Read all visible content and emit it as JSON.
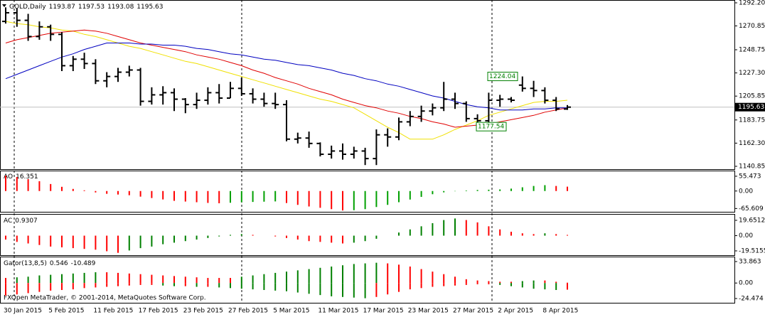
{
  "chart_data": [
    {
      "type": "ohlc",
      "title": "GOLD,Daily",
      "categories": [
        "30 Jan 2015",
        null,
        null,
        null,
        "5 Feb 2015",
        null,
        null,
        null,
        "11 Feb 2015",
        null,
        null,
        null,
        "17 Feb 2015",
        null,
        null,
        null,
        "23 Feb 2015",
        null,
        null,
        null,
        "27 Feb 2015",
        null,
        null,
        null,
        "5 Mar 2015",
        null,
        null,
        null,
        "11 Mar 2015",
        null,
        null,
        null,
        "17 Mar 2015",
        null,
        null,
        null,
        "23 Mar 2015",
        null,
        null,
        null,
        "27 Mar 2015",
        null,
        null,
        null,
        "2 Apr 2015",
        null,
        null,
        null,
        "8 Apr 2015",
        null,
        null
      ],
      "open": [
        1275,
        1283,
        1276,
        1261,
        1270,
        1263,
        1234,
        1240,
        1236,
        1220,
        1224,
        1228,
        1230,
        1201,
        1207,
        1209,
        1203,
        1198,
        1202,
        1209,
        1204,
        1213,
        1208,
        1203,
        1199,
        1198,
        1166,
        1167,
        1162,
        1152,
        1155,
        1152,
        1155,
        1148,
        1170,
        1168,
        1182,
        1187,
        1192,
        1195,
        1203,
        1199,
        1185,
        1183,
        1202,
        1203,
        1216,
        1213,
        1211,
        1202,
        1193.87
      ],
      "high": [
        1288,
        1287,
        1282,
        1275,
        1272,
        1265,
        1243,
        1246,
        1240,
        1228,
        1232,
        1234,
        1232,
        1214,
        1215,
        1213,
        1204,
        1209,
        1214,
        1217,
        1219,
        1223,
        1213,
        1209,
        1209,
        1202,
        1172,
        1173,
        1163,
        1160,
        1162,
        1159,
        1158,
        1175,
        1176,
        1186,
        1192,
        1197,
        1199,
        1219,
        1209,
        1201,
        1189,
        1209,
        1207,
        1205,
        1224.04,
        1220,
        1214,
        1205,
        1197.53
      ],
      "low": [
        1273,
        1270,
        1257,
        1258,
        1257,
        1229,
        1229,
        1231,
        1217,
        1214,
        1219,
        1224,
        1197,
        1198,
        1198,
        1192,
        1190,
        1194,
        1198,
        1199,
        1204,
        1206,
        1199,
        1196,
        1194,
        1164,
        1162,
        1158,
        1150,
        1148,
        1147,
        1148,
        1142,
        1142,
        1159,
        1165,
        1178,
        1182,
        1188,
        1192,
        1194,
        1182,
        1177.54,
        1178,
        1196,
        1200,
        1210,
        1205,
        1199,
        1192,
        1193.08
      ],
      "close": [
        1283,
        1276,
        1261,
        1270,
        1263,
        1234,
        1240,
        1236,
        1220,
        1224,
        1228,
        1230,
        1201,
        1207,
        1209,
        1203,
        1198,
        1202,
        1209,
        1204,
        1213,
        1208,
        1203,
        1199,
        1198,
        1166,
        1167,
        1162,
        1152,
        1155,
        1152,
        1155,
        1148,
        1170,
        1168,
        1182,
        1187,
        1192,
        1195,
        1203,
        1199,
        1185,
        1183,
        1202,
        1203,
        1202,
        1213,
        1211,
        1202,
        1194,
        1195.63
      ],
      "bar_color": "#000000",
      "series": [
        {
          "color": "#f0e000",
          "values": [
            1275,
            1273,
            1272,
            1270,
            1269,
            1267,
            1266,
            1263,
            1261,
            1258,
            1255,
            1252,
            1250,
            1247,
            1244,
            1241,
            1238,
            1236,
            1233,
            1230,
            1227,
            1224,
            1221,
            1218,
            1215,
            1212,
            1209,
            1206,
            1203,
            1201,
            1198,
            1195,
            1189,
            1183,
            1177,
            1172,
            1166,
            1166,
            1166,
            1170,
            1175,
            1179,
            1183,
            1188,
            1191,
            1194,
            1197,
            1200,
            1201,
            1201,
            1202
          ]
        },
        {
          "color": "#e00000",
          "values": [
            1255,
            1258,
            1260,
            1262,
            1264,
            1265,
            1266,
            1267,
            1266,
            1264,
            1261,
            1258,
            1255,
            1253,
            1251,
            1249,
            1247,
            1244,
            1242,
            1240,
            1237,
            1234,
            1230,
            1227,
            1223,
            1220,
            1217,
            1213,
            1210,
            1207,
            1203,
            1200,
            1197,
            1195,
            1192,
            1190,
            1187,
            1185,
            1182,
            1180,
            1177,
            1178,
            1179,
            1180,
            1182,
            1184,
            1186,
            1188,
            1191,
            1193,
            1195
          ]
        },
        {
          "color": "#0000c0",
          "values": [
            1222,
            1226,
            1230,
            1234,
            1238,
            1242,
            1245,
            1249,
            1252,
            1255,
            1255,
            1255,
            1254,
            1254,
            1253,
            1253,
            1252,
            1250,
            1249,
            1247,
            1245,
            1244,
            1242,
            1240,
            1239,
            1237,
            1235,
            1234,
            1232,
            1230,
            1227,
            1225,
            1222,
            1220,
            1217,
            1215,
            1212,
            1209,
            1206,
            1204,
            1201,
            1198,
            1196,
            1195,
            1193,
            1193,
            1193,
            1194,
            1194,
            1195,
            1195
          ]
        }
      ],
      "ylim": [
        1138.2,
        1293.5
      ],
      "yticks": [
        {
          "value": 1292.2,
          "label": "1292.20"
        },
        1270.85,
        1248.75,
        {
          "value": 1227.3,
          "label": "1227.30"
        },
        1205.85,
        1183.75,
        {
          "value": 1162.3,
          "label": "1162.30"
        },
        1140.85
      ]
    },
    {
      "type": "bar",
      "title": "AO",
      "values": [
        57.9,
        52.6,
        44.7,
        36.8,
        26.3,
        15.8,
        7.9,
        2.6,
        -5.3,
        -10.5,
        -13.2,
        -15.8,
        -21.1,
        -26.3,
        -31.6,
        -36.8,
        -39.5,
        -42.1,
        -44.7,
        -46,
        -44,
        -42,
        -41,
        -40,
        -39,
        -45,
        -52,
        -58,
        -63,
        -68,
        -73,
        -72,
        -68,
        -60,
        -52,
        -42,
        -32,
        -22,
        -12,
        -5,
        -1,
        2,
        4,
        5,
        6,
        9,
        14,
        19,
        22,
        19,
        16.351
      ],
      "up_color": "#00a000",
      "down_color": "#ff0000",
      "ylim": [
        -78,
        74
      ],
      "yticks": [
        55.473,
        {
          "value": 0,
          "label": "0.00"
        },
        -65.609
      ]
    },
    {
      "type": "bar",
      "title": "AC",
      "values": [
        -5,
        -8,
        -10,
        -12,
        -14,
        -15,
        -16,
        -17,
        -18,
        -20,
        -22,
        -19,
        -16,
        -14,
        -11,
        -9,
        -7,
        -5,
        -3,
        -1,
        1,
        2,
        1,
        0,
        -1,
        -3,
        -5,
        -7,
        -8,
        -9,
        -10,
        -9,
        -7,
        -4,
        0,
        4,
        8,
        12,
        16,
        20,
        22,
        20,
        17,
        12,
        8,
        5,
        3,
        2,
        3,
        2,
        0.9307
      ],
      "up_color": "#008000",
      "down_color": "#ff0000",
      "ylim": [
        -24.1,
        26
      ],
      "yticks": [
        19.6512,
        {
          "value": 0,
          "label": "0.00"
        },
        -19.5155
      ]
    },
    {
      "type": "gator",
      "title": "Gator(13,8,5)",
      "series": [
        {
          "values": [
            8,
            9,
            10,
            12,
            13,
            14,
            15,
            16,
            17,
            17,
            16,
            15,
            14,
            13,
            12,
            11,
            10,
            9,
            8,
            8,
            8,
            10,
            12,
            14,
            16,
            18,
            20,
            22,
            24,
            26,
            28,
            30,
            31,
            32,
            31,
            29,
            26,
            22,
            18,
            14,
            10,
            6,
            4,
            3,
            2,
            2,
            3,
            4,
            4,
            2,
            0.546
          ]
        },
        {
          "values": [
            -20,
            -18,
            -16,
            -14,
            -12,
            -11,
            -10,
            -8,
            -7,
            -6,
            -5,
            -4,
            -3,
            -3,
            -4,
            -5,
            -5,
            -6,
            -6,
            -7,
            -8,
            -9,
            -10,
            -11,
            -12,
            -13,
            -15,
            -17,
            -19,
            -21,
            -22,
            -23,
            -24,
            -22,
            -18,
            -14,
            -10,
            -8,
            -6,
            -5,
            -4,
            -3,
            -2,
            -2,
            -3,
            -5,
            -7,
            -9,
            -10,
            -11,
            -10.489
          ]
        }
      ],
      "up_color": "#008000",
      "down_color": "#ff0000",
      "ylim": [
        -30.08,
        39.47
      ],
      "yticks": [
        33.863,
        {
          "value": 0,
          "label": "0.00"
        },
        -24.474
      ]
    }
  ],
  "copyright": "FXOpen MetaTrader, © 2001-2014, MetaQuotes Software Corp."
}
